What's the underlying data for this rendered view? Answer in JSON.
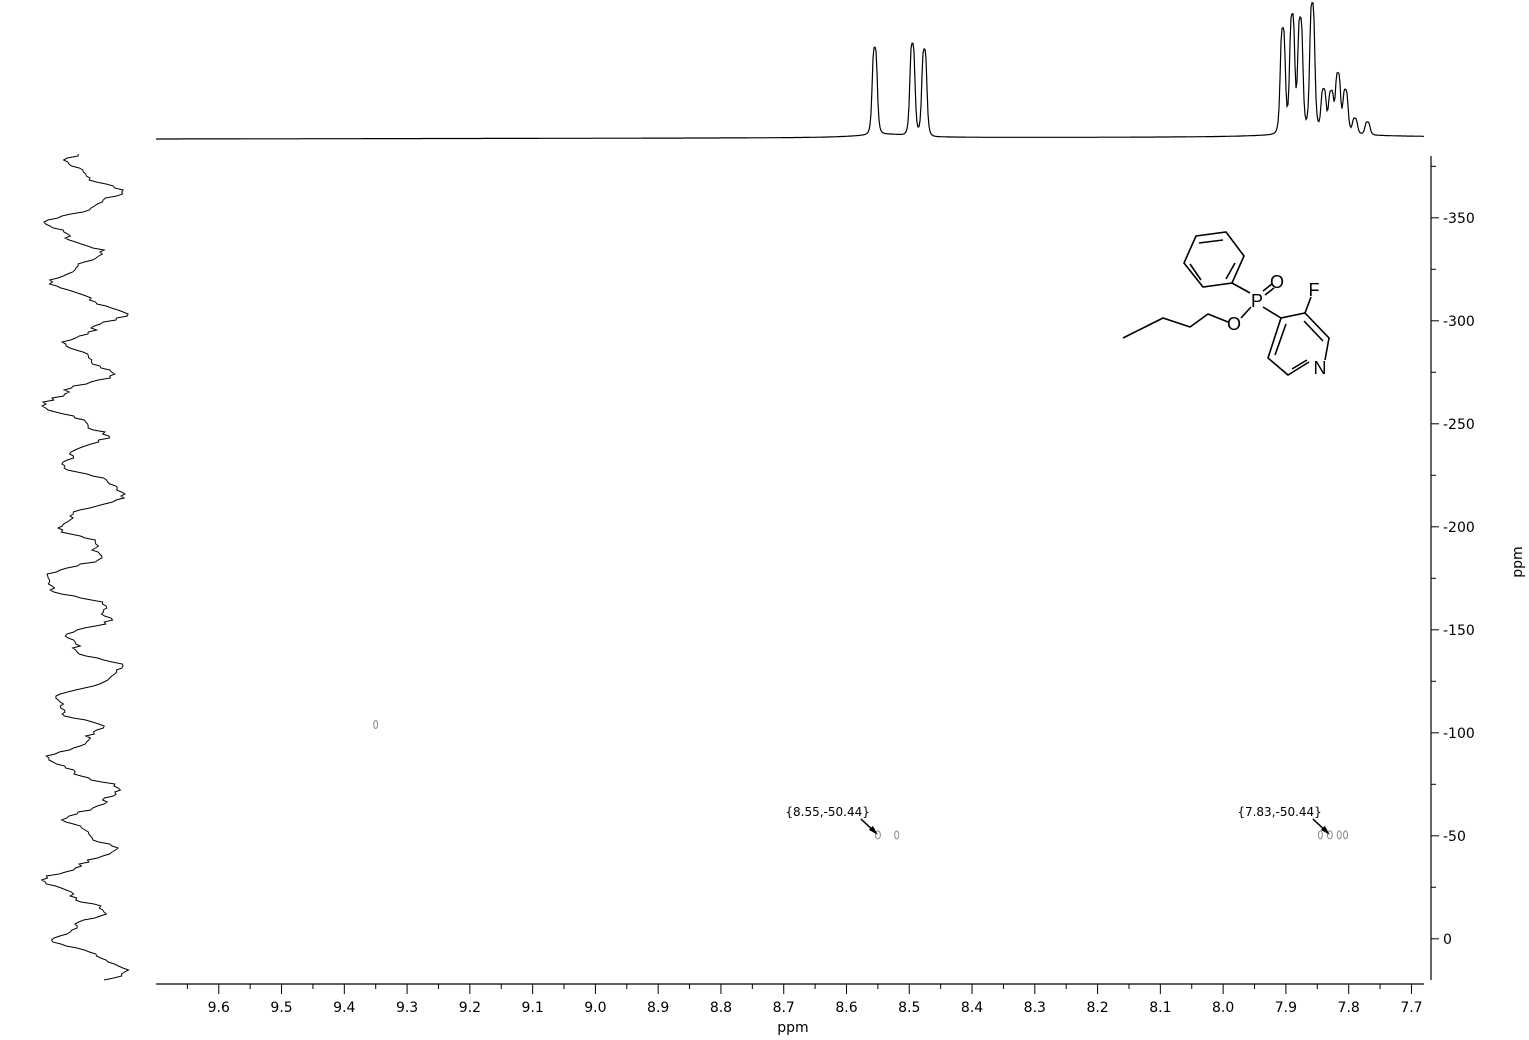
{
  "chart_data": {
    "type": "scatter",
    "subtype": "2D NMR contour plot (1H-19F HMBC) with projections",
    "xlabel": "ppm",
    "ylabel": "ppm",
    "xlim": [
      9.7,
      7.68
    ],
    "ylim": [
      20,
      -380
    ],
    "x_ticks": [
      "9.6",
      "9.5",
      "9.4",
      "9.3",
      "9.2",
      "9.1",
      "9.0",
      "8.9",
      "8.8",
      "8.7",
      "8.6",
      "8.5",
      "8.4",
      "8.3",
      "8.2",
      "8.1",
      "8.0",
      "7.9",
      "7.8",
      "7.7"
    ],
    "y_ticks": [
      "-350",
      "-300",
      "-250",
      "-200",
      "-150",
      "-100",
      "-50",
      "0"
    ],
    "cross_peaks": [
      {
        "x": 8.55,
        "y": -50.44,
        "label": "{8.55,-50.44}"
      },
      {
        "x": 7.83,
        "y": -50.44,
        "label": "{7.83,-50.44}"
      }
    ],
    "minor_contours": [
      {
        "x": 8.52,
        "y": -50.44
      },
      {
        "x": 7.845,
        "y": -50.44
      },
      {
        "x": 7.815,
        "y": -50.44
      },
      {
        "x": 7.805,
        "y": -50.44
      },
      {
        "x": 9.35,
        "y": -104
      }
    ],
    "top_projection_peaks": [
      {
        "x": 8.555,
        "height": 0.68
      },
      {
        "x": 8.495,
        "height": 0.72
      },
      {
        "x": 8.476,
        "height": 0.68
      },
      {
        "x": 7.905,
        "height": 0.82
      },
      {
        "x": 7.89,
        "height": 0.91
      },
      {
        "x": 7.877,
        "height": 0.88
      },
      {
        "x": 7.858,
        "height": 1.0
      },
      {
        "x": 7.84,
        "height": 0.32
      },
      {
        "x": 7.828,
        "height": 0.3
      },
      {
        "x": 7.817,
        "height": 0.45
      },
      {
        "x": 7.805,
        "height": 0.33
      },
      {
        "x": 7.79,
        "height": 0.12
      },
      {
        "x": 7.77,
        "height": 0.1
      }
    ],
    "structure_atoms": [
      "P",
      "O",
      "O",
      "F",
      "N"
    ]
  }
}
